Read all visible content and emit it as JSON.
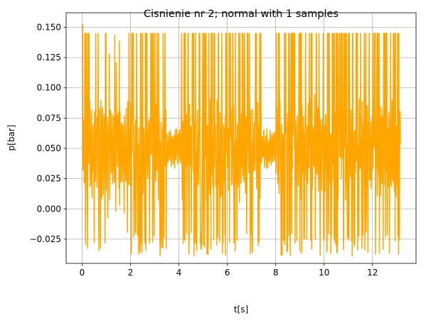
{
  "chart_data": {
    "type": "line",
    "title": "Cisnienie nr 2; normal with 1 samples",
    "xlabel": "t[s]",
    "ylabel": "p[bar]",
    "xlim": [
      -0.66,
      13.8
    ],
    "ylim": [
      -0.045,
      0.162
    ],
    "xticks": [
      0,
      2,
      4,
      6,
      8,
      10,
      12
    ],
    "yticks": [
      -0.025,
      0.0,
      0.025,
      0.05,
      0.075,
      0.1,
      0.125,
      0.15
    ],
    "xtick_labels": [
      "0",
      "2",
      "4",
      "6",
      "8",
      "10",
      "12"
    ],
    "ytick_labels": [
      "−0.025",
      "0.000",
      "0.025",
      "0.050",
      "0.075",
      "0.100",
      "0.125",
      "0.150"
    ],
    "grid": true,
    "series": [
      {
        "color": "#ffa500",
        "segments": [
          {
            "t0": 0.0,
            "t1": 1.0,
            "amp": "high"
          },
          {
            "t0": 1.0,
            "t1": 1.8,
            "amp": "medium"
          },
          {
            "t0": 1.8,
            "t1": 3.5,
            "amp": "high"
          },
          {
            "t0": 3.5,
            "t1": 4.1,
            "amp": "low"
          },
          {
            "t0": 4.1,
            "t1": 7.4,
            "amp": "high"
          },
          {
            "t0": 7.4,
            "t1": 8.0,
            "amp": "low"
          },
          {
            "t0": 8.0,
            "t1": 13.15,
            "amp": "high"
          }
        ],
        "t_start": 0.0,
        "t_end": 13.15,
        "max": 0.152,
        "min": -0.039,
        "center": 0.05,
        "typical_peak": 0.145,
        "typical_trough": -0.039
      }
    ]
  }
}
